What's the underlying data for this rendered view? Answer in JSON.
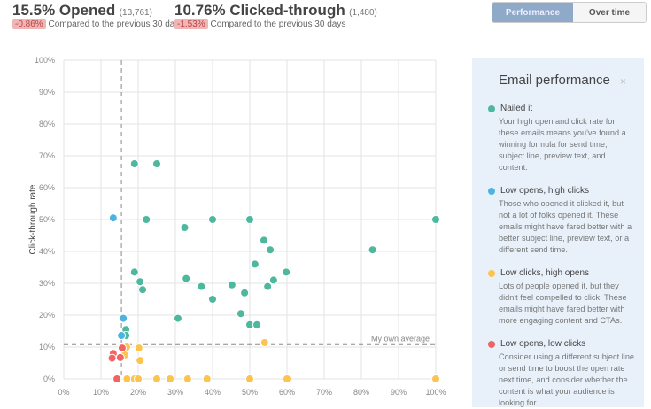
{
  "header": {
    "opened": {
      "value": "15.5% Opened",
      "count": "(13,761)",
      "change": "-0.86%",
      "compare": "Compared to the previous 30 days"
    },
    "clicked": {
      "value": "10.76% Clicked-through",
      "count": "(1,480)",
      "change": "-1.53%",
      "compare": "Compared to the previous 30 days"
    }
  },
  "toggle": {
    "performance": "Performance",
    "over_time": "Over time",
    "selected": "Performance"
  },
  "panel": {
    "title": "Email performance",
    "close": "×",
    "categories": [
      {
        "title": "Nailed it",
        "color": "#4db89e",
        "desc": "Your high open and click rate for these emails means you've found a winning formula for send time, subject line, preview text, and content."
      },
      {
        "title": "Low opens, high clicks",
        "color": "#4eb3de",
        "desc": "Those who opened it clicked it, but not a lot of folks opened it. These emails might have fared better with a better subject line, preview text, or a different send time."
      },
      {
        "title": "Low clicks, high opens",
        "color": "#fcc44f",
        "desc": "Lots of people opened it, but they didn't feel compelled to click. These emails might have fared better with more engaging content and CTAs."
      },
      {
        "title": "Low opens, low clicks",
        "color": "#f26464",
        "desc": "Consider using a different subject line or send time to boost the open rate next time, and consider whether the content is what your audience is looking for."
      }
    ]
  },
  "chart_data": {
    "type": "scatter",
    "ylabel": "Click-through rate",
    "xlabel": "",
    "xlim": [
      0,
      100
    ],
    "ylim": [
      0,
      100
    ],
    "xticks": [
      "0%",
      "10%",
      "20%",
      "30%",
      "40%",
      "50%",
      "60%",
      "70%",
      "80%",
      "90%",
      "100%"
    ],
    "yticks": [
      "0%",
      "10%",
      "20%",
      "30%",
      "40%",
      "50%",
      "60%",
      "70%",
      "80%",
      "90%",
      "100%"
    ],
    "grid": true,
    "average": {
      "label": "My own average",
      "open": 15.5,
      "click": 10.76
    },
    "series": [
      {
        "category": "Nailed it",
        "color": "#4db89e",
        "points": [
          [
            19,
            67.5
          ],
          [
            25,
            67.5
          ],
          [
            22.2,
            50
          ],
          [
            40,
            50
          ],
          [
            50,
            50
          ],
          [
            100,
            50
          ],
          [
            32.5,
            47.5
          ],
          [
            53.8,
            43.5
          ],
          [
            55.5,
            40.5
          ],
          [
            83,
            40.5
          ],
          [
            51.4,
            36
          ],
          [
            19,
            33.5
          ],
          [
            59.8,
            33.5
          ],
          [
            20.5,
            30.5
          ],
          [
            32.9,
            31.5
          ],
          [
            56.4,
            31
          ],
          [
            21.2,
            28
          ],
          [
            37,
            29
          ],
          [
            45.2,
            29.5
          ],
          [
            48.6,
            27
          ],
          [
            54.8,
            29
          ],
          [
            40,
            25
          ],
          [
            30.7,
            19
          ],
          [
            47.6,
            20.5
          ],
          [
            50,
            17
          ],
          [
            51.9,
            17
          ],
          [
            16.7,
            15.5
          ],
          [
            16.7,
            13.6
          ]
        ]
      },
      {
        "category": "Low opens, high clicks",
        "color": "#4eb3de",
        "points": [
          [
            13.3,
            50.5
          ],
          [
            16,
            19
          ],
          [
            15.5,
            13.6
          ]
        ]
      },
      {
        "category": "Low clicks, high opens",
        "color": "#fcc44f",
        "points": [
          [
            16.9,
            10
          ],
          [
            16.4,
            7.5
          ],
          [
            20.2,
            9.7
          ],
          [
            20.5,
            5.8
          ],
          [
            54,
            11.4
          ],
          [
            17,
            0
          ],
          [
            19,
            0
          ],
          [
            20,
            0
          ],
          [
            25,
            0
          ],
          [
            28.6,
            0
          ],
          [
            33.3,
            0
          ],
          [
            38.5,
            0
          ],
          [
            50,
            0
          ],
          [
            60,
            0
          ],
          [
            100,
            0
          ]
        ]
      },
      {
        "category": "Low opens, low clicks",
        "color": "#f26464",
        "points": [
          [
            15.7,
            9.7
          ],
          [
            13.3,
            8
          ],
          [
            15.2,
            6.7
          ],
          [
            13,
            6.5
          ],
          [
            14.3,
            0
          ]
        ]
      }
    ]
  }
}
